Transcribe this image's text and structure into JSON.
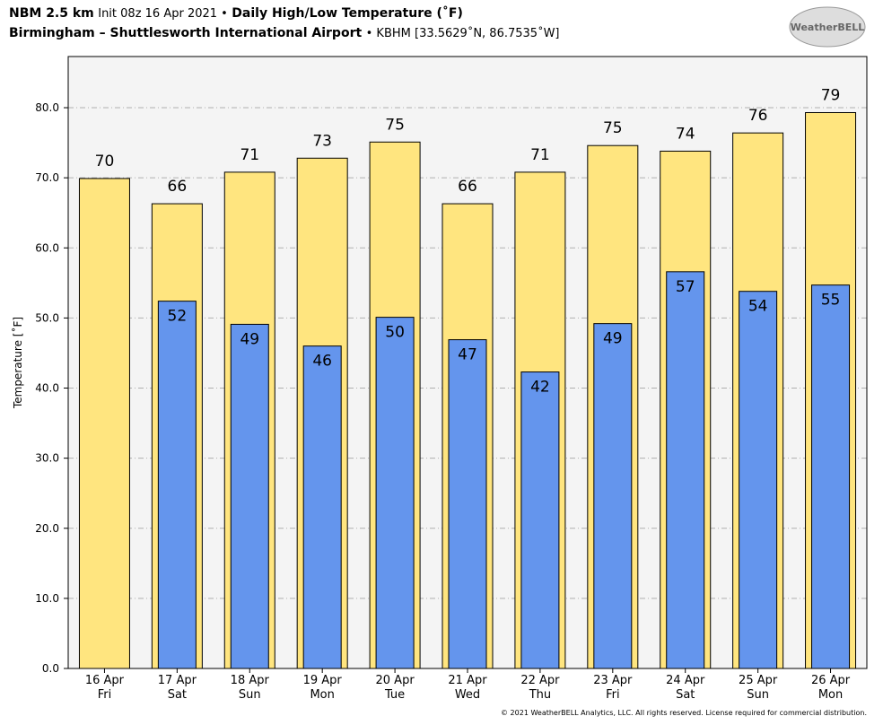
{
  "chart_data": {
    "type": "bar",
    "title": {
      "model": "NBM 2.5 km",
      "init": "Init 08z 16 Apr 2021 •",
      "product": "Daily High/Low Temperature (˚F)"
    },
    "subtitle": {
      "station": "Birmingham – Shuttlesworth International Airport",
      "id": "• KBHM [33.5629˚N, 86.7535˚W]"
    },
    "logo": "WeatherBELL",
    "ylabel": "Temperature [˚F]",
    "categories": [
      [
        "16 Apr",
        "Fri"
      ],
      [
        "17 Apr",
        "Sat"
      ],
      [
        "18 Apr",
        "Sun"
      ],
      [
        "19 Apr",
        "Mon"
      ],
      [
        "20 Apr",
        "Tue"
      ],
      [
        "21 Apr",
        "Wed"
      ],
      [
        "22 Apr",
        "Thu"
      ],
      [
        "23 Apr",
        "Fri"
      ],
      [
        "24 Apr",
        "Sat"
      ],
      [
        "25 Apr",
        "Sun"
      ],
      [
        "26 Apr",
        "Mon"
      ]
    ],
    "series": [
      {
        "color": "#ffe57f",
        "values": [
          69.9,
          66.3,
          70.8,
          72.8,
          75.1,
          66.3,
          70.8,
          74.6,
          73.8,
          76.4,
          79.3
        ],
        "value_labels": [
          "70",
          "66",
          "71",
          "73",
          "75",
          "66",
          "71",
          "75",
          "74",
          "76",
          "79"
        ]
      },
      {
        "color": "#6495ed",
        "values": [
          null,
          52.4,
          49.1,
          46.0,
          50.1,
          46.9,
          42.3,
          49.2,
          56.6,
          53.8,
          54.7
        ],
        "value_labels": [
          null,
          "52",
          "49",
          "46",
          "50",
          "47",
          "42",
          "49",
          "57",
          "54",
          "55"
        ]
      }
    ],
    "ylim": [
      0,
      87.3
    ],
    "yticks": [
      {
        "value": 0,
        "label": "0.0"
      },
      {
        "value": 10,
        "label": "10.0"
      },
      {
        "value": 20,
        "label": "20.0"
      },
      {
        "value": 30,
        "label": "30.0"
      },
      {
        "value": 40,
        "label": "40.0"
      },
      {
        "value": 50,
        "label": "50.0"
      },
      {
        "value": 60,
        "label": "60.0"
      },
      {
        "value": 70,
        "label": "70.0"
      },
      {
        "value": 80,
        "label": "80.0"
      }
    ],
    "grid": true,
    "footer": "© 2021 WeatherBELL Analytics, LLC. All rights reserved. License required for commercial distribution."
  }
}
